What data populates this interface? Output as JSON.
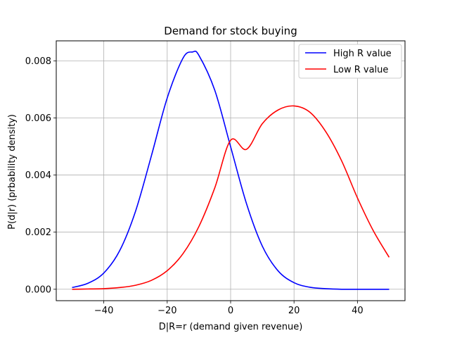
{
  "chart_data": {
    "type": "line",
    "title": "Demand for stock buying",
    "xlabel": "D|R=r (demand given revenue)",
    "ylabel": "P(d|r) (prbability density)",
    "xlim": [
      -55,
      55
    ],
    "ylim": [
      -0.0004,
      0.0087
    ],
    "x_ticks": [
      -40,
      -20,
      0,
      20,
      40
    ],
    "x_tick_labels": [
      "−40",
      "−20",
      "0",
      "20",
      "40"
    ],
    "y_ticks": [
      0,
      0.002,
      0.004,
      0.006,
      0.008
    ],
    "y_tick_labels": [
      "0.000",
      "0.002",
      "0.004",
      "0.006",
      "0.008"
    ],
    "grid": true,
    "legend_position": "top-right",
    "series": [
      {
        "name": "High R value",
        "color": "#0000ff",
        "x": [
          -50,
          -45,
          -40,
          -35,
          -30,
          -25,
          -20,
          -15,
          -12,
          -10,
          -5,
          0,
          5,
          10,
          15,
          20,
          25,
          30,
          35,
          40,
          45,
          50
        ],
        "y": [
          6e-05,
          0.00021,
          0.00057,
          0.00135,
          0.00273,
          0.00467,
          0.0067,
          0.0081,
          0.00831,
          0.00819,
          0.00697,
          0.00499,
          0.003,
          0.00151,
          0.00064,
          0.00023,
          7e-05,
          2e-05,
          0.0,
          0.0,
          0.0,
          0.0
        ]
      },
      {
        "name": "Low R value",
        "color": "#ff0000",
        "x": [
          -50,
          -45,
          -40,
          -35,
          -30,
          -25,
          -20,
          -15,
          -10,
          -5,
          0,
          5,
          10,
          15,
          20,
          25,
          30,
          35,
          40,
          45,
          50
        ],
        "y": [
          0.0,
          1e-05,
          2e-05,
          6e-05,
          0.00014,
          0.00031,
          0.00065,
          0.00125,
          0.0022,
          0.00355,
          0.00522,
          0.0049,
          0.0058,
          0.00628,
          0.00642,
          0.0062,
          0.00552,
          0.0045,
          0.0032,
          0.00205,
          0.00112
        ]
      }
    ]
  }
}
